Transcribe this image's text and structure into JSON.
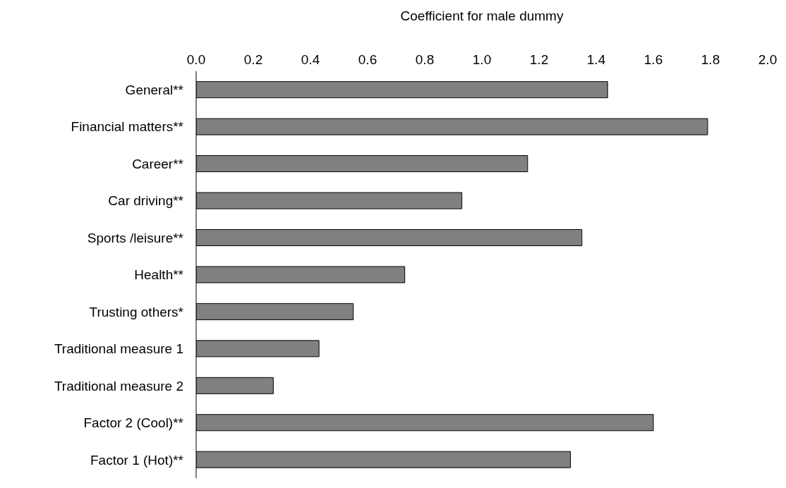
{
  "chart_data": {
    "type": "bar",
    "orientation": "horizontal",
    "xlabel": "Coefficient for male dummy",
    "categories": [
      "General**",
      "Financial matters**",
      "Career**",
      "Car driving**",
      "Sports /leisure**",
      "Health**",
      "Trusting others*",
      "Traditional measure 1",
      "Traditional measure 2",
      "Factor 2 (Cool)**",
      "Factor 1 (Hot)**"
    ],
    "values": [
      1.44,
      1.79,
      1.16,
      0.93,
      1.35,
      0.73,
      0.55,
      0.43,
      0.27,
      1.6,
      1.31
    ],
    "color": "#808080",
    "xlim": [
      0,
      2
    ],
    "xticks": [
      {
        "value": 0,
        "label": "0.0"
      },
      {
        "value": 0.2,
        "label": "0.2"
      },
      {
        "value": 0.4,
        "label": "0.4"
      },
      {
        "value": 0.6,
        "label": "0.6"
      },
      {
        "value": 0.8,
        "label": "0.8"
      },
      {
        "value": 1,
        "label": "1.0"
      },
      {
        "value": 1.2,
        "label": "1.2"
      },
      {
        "value": 1.4,
        "label": "1.4"
      },
      {
        "value": 1.6,
        "label": "1.6"
      },
      {
        "value": 1.8,
        "label": "1.8"
      },
      {
        "value": 2,
        "label": "2.0"
      }
    ],
    "grid": false,
    "legend": false
  }
}
